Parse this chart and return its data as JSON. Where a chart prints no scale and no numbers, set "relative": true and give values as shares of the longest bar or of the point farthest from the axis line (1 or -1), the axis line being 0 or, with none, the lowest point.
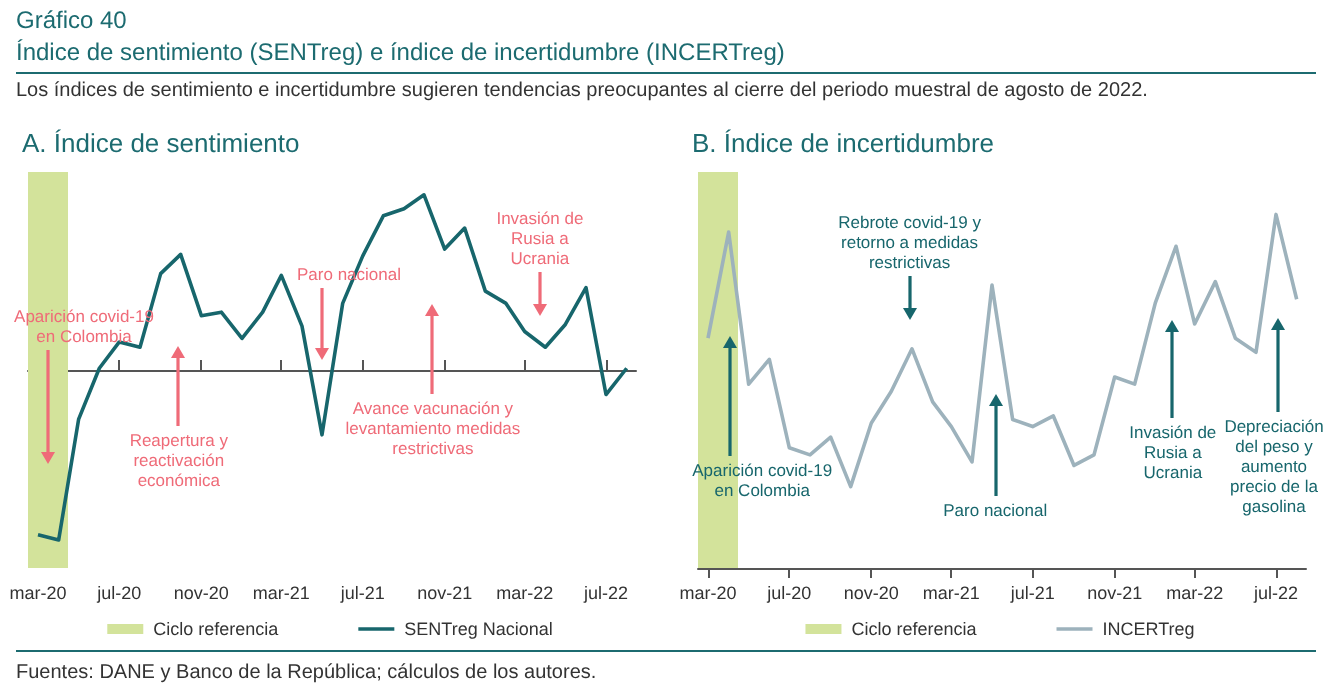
{
  "chart_data": [
    {
      "type": "line",
      "title": "A. Índice de sentimiento",
      "relative": true,
      "legend": "bottom",
      "annotations": [
        "Gráfico 40",
        "Índice de sentimiento (SENTreg) e índice de incertidumbre (INCERTreg)",
        "Los índices de sentimiento e incertidumbre sugieren tendencias preocupantes al cierre del periodo muestral de agosto de 2022.",
        "Fuentes: DANE y Banco de la República; cálculos de los autores.",
        "Aparición covid-19 en Colombia",
        "Reapertura y reactivación económica",
        "Paro nacional",
        "Avance vacunación y levantamiento medidas restrictivas",
        "Invasión de Rusia a Ucrania"
      ],
      "x": [
        "2020-03",
        "2020-04",
        "2020-05",
        "2020-06",
        "2020-07",
        "2020-08",
        "2020-09",
        "2020-10",
        "2020-11",
        "2020-12",
        "2021-01",
        "2021-02",
        "2021-03",
        "2021-04",
        "2021-05",
        "2021-06",
        "2021-07",
        "2021-08",
        "2021-09",
        "2021-10",
        "2021-11",
        "2021-12",
        "2022-01",
        "2022-02",
        "2022-03",
        "2022-04",
        "2022-05",
        "2022-06",
        "2022-07",
        "2022-08"
      ],
      "xlim": [
        "2020-02-15",
        "2022-08-15"
      ],
      "xticks": [
        {
          "value": "2020-03",
          "label": "mar-20"
        },
        {
          "value": "2020-07",
          "label": "jul-20"
        },
        {
          "value": "2020-11",
          "label": "nov-20"
        },
        {
          "value": "2021-03",
          "label": "mar-21"
        },
        {
          "value": "2021-07",
          "label": "jul-21"
        },
        {
          "value": "2021-11",
          "label": "nov-21"
        },
        {
          "value": "2022-03",
          "label": "mar-22"
        },
        {
          "value": "2022-07",
          "label": "jul-22"
        }
      ],
      "bands": [
        {
          "axis": "x",
          "from": "2020-02-15",
          "to": "2020-04-15",
          "label": "Ciclo referencia",
          "color": "#d3e39b"
        }
      ],
      "series": [
        {
          "name": "SENTreg Nacional",
          "color": "#17666c",
          "values": [
            -0.94,
            -0.97,
            -0.28,
            0.01,
            0.16,
            0.13,
            0.55,
            0.66,
            0.31,
            0.33,
            0.18,
            0.33,
            0.54,
            0.25,
            -0.37,
            0.38,
            0.65,
            0.88,
            0.92,
            1.0,
            0.69,
            0.81,
            0.45,
            0.38,
            0.22,
            0.13,
            0.26,
            0.47,
            -0.14,
            0.01
          ]
        }
      ]
    },
    {
      "type": "line",
      "title": "B. Índice de incertidumbre",
      "relative": true,
      "legend": "bottom",
      "annotations": [
        "Aparición covid-19 en Colombia",
        "Rebrote covid-19 y retorno a medidas restrictivas",
        "Paro nacional",
        "Invasión de Rusia a Ucrania",
        "Depreciación del peso y aumento precio de la gasolina"
      ],
      "x": [
        "2020-03",
        "2020-04",
        "2020-05",
        "2020-06",
        "2020-07",
        "2020-08",
        "2020-09",
        "2020-10",
        "2020-11",
        "2020-12",
        "2021-01",
        "2021-02",
        "2021-03",
        "2021-04",
        "2021-05",
        "2021-06",
        "2021-07",
        "2021-08",
        "2021-09",
        "2021-10",
        "2021-11",
        "2021-12",
        "2022-01",
        "2022-02",
        "2022-03",
        "2022-04",
        "2022-05",
        "2022-06",
        "2022-07",
        "2022-08"
      ],
      "xlim": [
        "2020-02-15",
        "2022-08-15"
      ],
      "xticks": [
        {
          "value": "2020-03",
          "label": "mar-20"
        },
        {
          "value": "2020-07",
          "label": "jul-20"
        },
        {
          "value": "2020-11",
          "label": "nov-20"
        },
        {
          "value": "2021-03",
          "label": "mar-21"
        },
        {
          "value": "2021-07",
          "label": "jul-21"
        },
        {
          "value": "2021-11",
          "label": "nov-21"
        },
        {
          "value": "2022-03",
          "label": "mar-22"
        },
        {
          "value": "2022-07",
          "label": "jul-22"
        }
      ],
      "bands": [
        {
          "axis": "x",
          "from": "2020-02-15",
          "to": "2020-04-15",
          "label": "Ciclo referencia",
          "color": "#d3e39b"
        }
      ],
      "series": [
        {
          "name": "INCERTreg",
          "color": "#9db2bc",
          "values": [
            0.65,
            0.95,
            0.52,
            0.59,
            0.34,
            0.32,
            0.37,
            0.23,
            0.41,
            0.5,
            0.62,
            0.47,
            0.4,
            0.3,
            0.8,
            0.42,
            0.4,
            0.43,
            0.29,
            0.32,
            0.54,
            0.52,
            0.75,
            0.91,
            0.69,
            0.81,
            0.65,
            0.61,
            1.0,
            0.76
          ]
        }
      ]
    }
  ]
}
